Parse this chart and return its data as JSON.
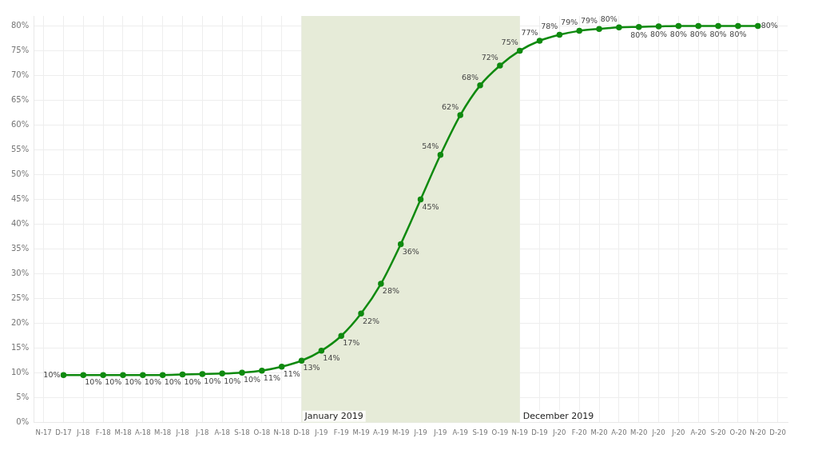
{
  "chart_data": {
    "type": "line",
    "categories": [
      "N-17",
      "D-17",
      "J-18",
      "F-18",
      "M-18",
      "A-18",
      "M-18",
      "J-18",
      "J-18",
      "A-18",
      "S-18",
      "O-18",
      "N-18",
      "D-18",
      "J-19",
      "F-19",
      "M-19",
      "A-19",
      "M-19",
      "J-19",
      "J-19",
      "A-19",
      "S-19",
      "O-19",
      "N-19",
      "D-19",
      "J-20",
      "F-20",
      "M-20",
      "A-20",
      "M-20",
      "J-20",
      "J-20",
      "A-20",
      "S-20",
      "O-20",
      "N-20",
      "D-20"
    ],
    "series": [
      {
        "color": "#0f8a0f",
        "values": [
          null,
          9.6,
          9.6,
          9.6,
          9.6,
          9.6,
          9.6,
          9.7,
          9.8,
          9.9,
          10.1,
          10.5,
          11.3,
          12.5,
          14.5,
          17.5,
          22,
          28,
          36,
          45,
          54,
          62,
          68,
          72,
          75,
          77,
          78.2,
          79,
          79.4,
          79.7,
          79.8,
          79.9,
          80,
          80,
          80,
          80,
          80,
          null
        ],
        "value_labels": [
          null,
          "10%",
          "10%",
          "10%",
          "10%",
          "10%",
          "10%",
          "10%",
          "10%",
          "10%",
          "10%",
          "11%",
          "11%",
          "13%",
          "14%",
          "17%",
          "22%",
          "28%",
          "36%",
          "45%",
          "54%",
          "62%",
          "68%",
          "72%",
          "75%",
          "77%",
          "78%",
          "79%",
          "79%",
          "80%",
          "80%",
          "80%",
          "80%",
          "80%",
          "80%",
          "80%",
          "80%",
          null
        ]
      }
    ],
    "ylim": [
      0,
      82
    ],
    "yticks": [
      {
        "value": 0,
        "label": "0%"
      },
      {
        "value": 5,
        "label": "5%"
      },
      {
        "value": 10,
        "label": "10%"
      },
      {
        "value": 15,
        "label": "15%"
      },
      {
        "value": 20,
        "label": "20%"
      },
      {
        "value": 25,
        "label": "25%"
      },
      {
        "value": 30,
        "label": "30%"
      },
      {
        "value": 35,
        "label": "35%"
      },
      {
        "value": 40,
        "label": "40%"
      },
      {
        "value": 45,
        "label": "45%"
      },
      {
        "value": 50,
        "label": "50%"
      },
      {
        "value": 55,
        "label": "55%"
      },
      {
        "value": 60,
        "label": "60%"
      },
      {
        "value": 65,
        "label": "65%"
      },
      {
        "value": 70,
        "label": "70%"
      },
      {
        "value": 75,
        "label": "75%"
      },
      {
        "value": 80,
        "label": "80%"
      }
    ],
    "bands": [
      {
        "axis": "x",
        "from": "D-18",
        "to": "N-19",
        "color": "#e6ebd8"
      }
    ],
    "annotations": [
      {
        "text": "January 2019",
        "x": "D-18",
        "y": 0
      },
      {
        "text": "December 2019",
        "x": "N-19",
        "y": 0
      }
    ],
    "grid": true,
    "legend": false,
    "marker": "circle",
    "line_style": "solid"
  }
}
